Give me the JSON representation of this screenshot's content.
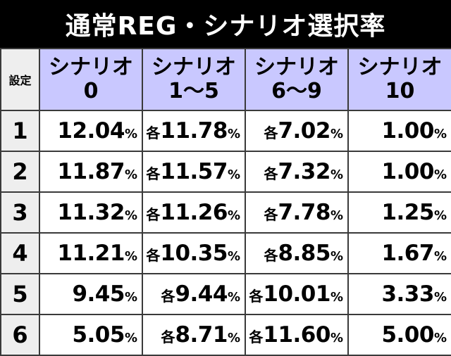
{
  "title": "通常REG・シナリオ選択率",
  "header": {
    "setting_label": "設定",
    "columns": [
      {
        "name": "シナリオ",
        "range": "0"
      },
      {
        "name": "シナリオ",
        "range": "1～5"
      },
      {
        "name": "シナリオ",
        "range": "6～9"
      },
      {
        "name": "シナリオ",
        "range": "10"
      }
    ]
  },
  "prefix_each": "各",
  "percent": "%",
  "rows": [
    {
      "setting": "1",
      "s0": "12.04",
      "s1_5": "11.78",
      "s6_9": "7.02",
      "s10": "1.00"
    },
    {
      "setting": "2",
      "s0": "11.87",
      "s1_5": "11.57",
      "s6_9": "7.32",
      "s10": "1.00"
    },
    {
      "setting": "3",
      "s0": "11.32",
      "s1_5": "11.26",
      "s6_9": "7.78",
      "s10": "1.25"
    },
    {
      "setting": "4",
      "s0": "11.21",
      "s1_5": "10.35",
      "s6_9": "8.85",
      "s10": "1.67"
    },
    {
      "setting": "5",
      "s0": "9.45",
      "s1_5": "9.44",
      "s6_9": "10.01",
      "s10": "3.33"
    },
    {
      "setting": "6",
      "s0": "5.05",
      "s1_5": "8.71",
      "s6_9": "11.60",
      "s10": "5.00"
    }
  ]
}
